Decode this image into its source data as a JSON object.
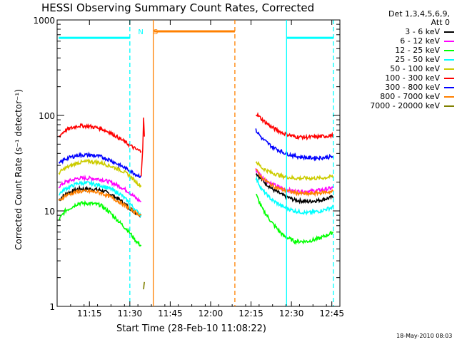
{
  "chart_data": {
    "type": "line",
    "title": "HESSI Observing Summary Count Rates, Corrected",
    "xlabel": "Start Time (28-Feb-10 11:08:22)",
    "ylabel": "Corrected Count Rate (s⁻¹ detector⁻¹)",
    "footnote": "18-May-2010 08:03",
    "x_unit": "minutes",
    "xlim": [
      11.05,
      12.8
    ],
    "ylim": [
      1,
      1000
    ],
    "yscale": "log",
    "xticks": [
      {
        "v": 11.25,
        "label": "11:15"
      },
      {
        "v": 11.5,
        "label": "11:30"
      },
      {
        "v": 11.75,
        "label": "11:45"
      },
      {
        "v": 12.0,
        "label": "12:00"
      },
      {
        "v": 12.25,
        "label": "12:15"
      },
      {
        "v": 12.5,
        "label": "12:30"
      },
      {
        "v": 12.75,
        "label": "12:45"
      }
    ],
    "yticks": [
      {
        "v": 1,
        "label": "1"
      },
      {
        "v": 10,
        "label": "10"
      },
      {
        "v": 100,
        "label": "100"
      },
      {
        "v": 1000,
        "label": "1000"
      }
    ],
    "legend_header": [
      "Det 1,3,4,5,6,9,",
      "Att 0"
    ],
    "legend_position": "right",
    "series": [
      {
        "name": "3 - 6 keV",
        "color": "#000000",
        "segments": [
          {
            "x": [
              11.06,
              11.1,
              11.18,
              11.25,
              11.32,
              11.38,
              11.44,
              11.49,
              11.54,
              11.57
            ],
            "y": [
              13,
              15,
              17,
              17,
              16.5,
              15,
              13,
              11,
              9.5,
              9
            ]
          },
          {
            "x": [
              12.28,
              12.32,
              12.38,
              12.45,
              12.52,
              12.6,
              12.68,
              12.76
            ],
            "y": [
              25,
              21,
              17,
              14.5,
              13,
              12.5,
              13,
              14
            ]
          }
        ]
      },
      {
        "name": "6 - 12 keV",
        "color": "#ff00ff",
        "segments": [
          {
            "x": [
              11.06,
              11.1,
              11.18,
              11.25,
              11.32,
              11.38,
              11.44,
              11.49,
              11.54,
              11.57
            ],
            "y": [
              18,
              20,
              22,
              22,
              21.5,
              20,
              18,
              16,
              13.5,
              12.5
            ]
          },
          {
            "x": [
              12.28,
              12.32,
              12.38,
              12.45,
              12.52,
              12.6,
              12.68,
              12.76
            ],
            "y": [
              27,
              22.5,
              19,
              17,
              16,
              16,
              16.5,
              17.5
            ]
          }
        ]
      },
      {
        "name": "12 - 25 keV",
        "color": "#00ff00",
        "segments": [
          {
            "x": [
              11.06,
              11.1,
              11.18,
              11.25,
              11.32,
              11.38,
              11.44,
              11.49,
              11.54,
              11.57
            ],
            "y": [
              8,
              10,
              12,
              12,
              11.5,
              9.5,
              7.5,
              6.2,
              4.8,
              4.3
            ]
          },
          {
            "x": [
              12.28,
              12.32,
              12.38,
              12.45,
              12.52,
              12.6,
              12.68,
              12.76
            ],
            "y": [
              15,
              10.5,
              7.5,
              5.5,
              4.8,
              4.8,
              5.2,
              6
            ]
          }
        ]
      },
      {
        "name": "25 - 50 keV",
        "color": "#00ffff",
        "segments": [
          {
            "x": [
              11.06,
              11.1,
              11.18,
              11.25,
              11.32,
              11.38,
              11.44,
              11.49,
              11.54,
              11.57
            ],
            "y": [
              15,
              17,
              19.5,
              19.5,
              18.5,
              17,
              15,
              12.5,
              10,
              9
            ]
          },
          {
            "x": [
              12.28,
              12.32,
              12.38,
              12.45,
              12.52,
              12.6,
              12.68,
              12.76
            ],
            "y": [
              22,
              16.5,
              13,
              11,
              10,
              9.5,
              10,
              11
            ]
          }
        ]
      },
      {
        "name": "50 - 100 keV",
        "color": "#cccc00",
        "segments": [
          {
            "x": [
              11.06,
              11.1,
              11.18,
              11.25,
              11.32,
              11.38,
              11.44,
              11.49,
              11.54,
              11.57
            ],
            "y": [
              25,
              28,
              32,
              33,
              32,
              29.5,
              27,
              24,
              20,
              18
            ]
          },
          {
            "x": [
              12.28,
              12.32,
              12.38,
              12.45,
              12.52,
              12.6,
              12.68,
              12.76
            ],
            "y": [
              33,
              28,
              25,
              23,
              22,
              22,
              22,
              23
            ]
          }
        ]
      },
      {
        "name": "100 - 300 keV",
        "color": "#ff0000",
        "segments": [
          {
            "x": [
              11.06,
              11.1,
              11.18,
              11.25,
              11.32,
              11.38,
              11.44,
              11.49,
              11.54,
              11.57
            ],
            "y": [
              60,
              70,
              78,
              77,
              73,
              66,
              57,
              50,
              44,
              42
            ]
          },
          {
            "x": [
              12.28,
              12.32,
              12.38,
              12.45,
              12.52,
              12.6,
              12.68,
              12.76
            ],
            "y": [
              105,
              90,
              75,
              65,
              60,
              59,
              60,
              62
            ]
          }
        ]
      },
      {
        "name": "300 - 800 keV",
        "color": "#0000ff",
        "segments": [
          {
            "x": [
              11.06,
              11.1,
              11.18,
              11.25,
              11.32,
              11.38,
              11.44,
              11.49,
              11.54,
              11.57
            ],
            "y": [
              31,
              35,
              38.5,
              38.5,
              37,
              34,
              30,
              27,
              24,
              23
            ]
          },
          {
            "x": [
              12.28,
              12.32,
              12.38,
              12.45,
              12.52,
              12.6,
              12.68,
              12.76
            ],
            "y": [
              70,
              57,
              47,
              41,
              37.5,
              36,
              36,
              37
            ]
          }
        ]
      },
      {
        "name": "800 - 7000 keV",
        "color": "#ff8000",
        "segments": [
          {
            "x": [
              11.06,
              11.1,
              11.18,
              11.25,
              11.32,
              11.38,
              11.44,
              11.49,
              11.54,
              11.57
            ],
            "y": [
              12.5,
              14.5,
              16,
              16,
              15.5,
              14,
              12.3,
              10.8,
              9.5,
              9
            ]
          },
          {
            "x": [
              12.28,
              12.32,
              12.38,
              12.45,
              12.52,
              12.6,
              12.68,
              12.76
            ],
            "y": [
              27,
              22,
              18.5,
              16.5,
              15.5,
              15,
              15.5,
              16
            ]
          }
        ]
      },
      {
        "name": "7000 - 20000 keV",
        "color": "#808000",
        "segments": [
          {
            "x": [
              11.585,
              11.59
            ],
            "y": [
              1.5,
              1.8
            ]
          }
        ]
      }
    ],
    "annotations": [
      {
        "text": "N",
        "x": 11.52,
        "color": "#00ffff"
      },
      {
        "text": "S",
        "x": 11.615,
        "color": "#ff8000"
      }
    ],
    "flag_bars": [
      {
        "label": "N",
        "color": "#00ffff",
        "x": [
          11.06,
          11.5
        ],
        "y": 650
      },
      {
        "label": "S",
        "color": "#ff8000",
        "x": [
          11.65,
          12.15
        ],
        "y": 760
      },
      {
        "label": "N",
        "color": "#00ffff",
        "x": [
          12.47,
          12.76
        ],
        "y": 650
      }
    ],
    "vlines": [
      {
        "x": 11.5,
        "color": "#00ffff",
        "dashed": true
      },
      {
        "x": 11.645,
        "color": "#ff8000",
        "dashed": false
      },
      {
        "x": 12.15,
        "color": "#ff8000",
        "dashed": true
      },
      {
        "x": 12.47,
        "color": "#00ffff",
        "dashed": false
      },
      {
        "x": 12.76,
        "color": "#00ffff",
        "dashed": true
      }
    ]
  }
}
